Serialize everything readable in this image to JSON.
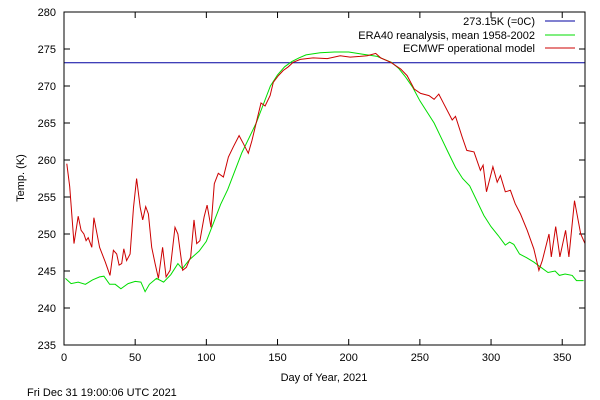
{
  "chart_data": {
    "type": "line",
    "title": "",
    "xlabel": "Day of Year, 2021",
    "ylabel": "Temp. (K)",
    "xlim": [
      0,
      366
    ],
    "ylim": [
      235,
      280
    ],
    "xticks": [
      0,
      50,
      100,
      150,
      200,
      250,
      300,
      350
    ],
    "yticks": [
      235,
      240,
      245,
      250,
      255,
      260,
      265,
      270,
      275,
      280
    ],
    "grid": false,
    "legend_position": "top-right",
    "footer": "Fri Dec 31 19:00:06 UTC 2021",
    "series": [
      {
        "name": "273.15K (=0C)",
        "color": "#0000a0",
        "points": [
          [
            0,
            273.15
          ],
          [
            366,
            273.15
          ]
        ]
      },
      {
        "name": "ERA40 reanalysis, mean 1958-2002",
        "color": "#00dd00",
        "points": [
          [
            1,
            244
          ],
          [
            5,
            243.3
          ],
          [
            10,
            243.5
          ],
          [
            15,
            243.2
          ],
          [
            20,
            243.8
          ],
          [
            25,
            244.2
          ],
          [
            28,
            244.3
          ],
          [
            32,
            243.2
          ],
          [
            36,
            243.2
          ],
          [
            40,
            242.6
          ],
          [
            45,
            243.3
          ],
          [
            50,
            243.6
          ],
          [
            54,
            243.5
          ],
          [
            57,
            242.2
          ],
          [
            60,
            243.2
          ],
          [
            65,
            244
          ],
          [
            70,
            243.5
          ],
          [
            75,
            244.5
          ],
          [
            80,
            246
          ],
          [
            83,
            245.3
          ],
          [
            88,
            246.5
          ],
          [
            95,
            247.7
          ],
          [
            100,
            249
          ],
          [
            105,
            251.5
          ],
          [
            110,
            254
          ],
          [
            115,
            256
          ],
          [
            120,
            258.5
          ],
          [
            125,
            261
          ],
          [
            130,
            263
          ],
          [
            135,
            265
          ],
          [
            140,
            267.5
          ],
          [
            145,
            270
          ],
          [
            150,
            271.5
          ],
          [
            155,
            272.6
          ],
          [
            160,
            273.3
          ],
          [
            165,
            273.8
          ],
          [
            170,
            274.2
          ],
          [
            180,
            274.5
          ],
          [
            190,
            274.6
          ],
          [
            200,
            274.6
          ],
          [
            210,
            274.3
          ],
          [
            220,
            274
          ],
          [
            225,
            273.6
          ],
          [
            230,
            273.2
          ],
          [
            235,
            272.4
          ],
          [
            240,
            271.2
          ],
          [
            245,
            269.8
          ],
          [
            250,
            268
          ],
          [
            255,
            266.5
          ],
          [
            260,
            265
          ],
          [
            265,
            263
          ],
          [
            270,
            261
          ],
          [
            275,
            259
          ],
          [
            280,
            257.5
          ],
          [
            285,
            256.5
          ],
          [
            290,
            254.5
          ],
          [
            295,
            252.5
          ],
          [
            300,
            251
          ],
          [
            305,
            249.8
          ],
          [
            310,
            248.5
          ],
          [
            313,
            248.9
          ],
          [
            316,
            248.6
          ],
          [
            320,
            247.3
          ],
          [
            325,
            246.8
          ],
          [
            330,
            246.2
          ],
          [
            335,
            245.5
          ],
          [
            340,
            244.8
          ],
          [
            345,
            245
          ],
          [
            348,
            244.4
          ],
          [
            352,
            244.6
          ],
          [
            357,
            244.4
          ],
          [
            360,
            243.7
          ],
          [
            365,
            243.7
          ]
        ]
      },
      {
        "name": "ECMWF operational model",
        "color": "#cc0000",
        "points": [
          [
            2,
            259.5
          ],
          [
            4,
            256.4
          ],
          [
            7,
            248.7
          ],
          [
            10,
            252.4
          ],
          [
            12,
            250.5
          ],
          [
            14,
            250
          ],
          [
            15.5,
            249.1
          ],
          [
            17,
            249.5
          ],
          [
            19.5,
            248.2
          ],
          [
            21,
            252.2
          ],
          [
            25,
            248.2
          ],
          [
            29,
            246.2
          ],
          [
            32.3,
            244.4
          ],
          [
            34.7,
            247.8
          ],
          [
            37,
            247.3
          ],
          [
            38.7,
            245.8
          ],
          [
            40.5,
            246
          ],
          [
            42,
            248
          ],
          [
            44,
            246.4
          ],
          [
            46.4,
            247.3
          ],
          [
            48.8,
            253.6
          ],
          [
            51,
            257.5
          ],
          [
            53.5,
            253.6
          ],
          [
            55.3,
            251.9
          ],
          [
            57.4,
            253.7
          ],
          [
            59.3,
            252.7
          ],
          [
            61.6,
            248.2
          ],
          [
            64,
            246
          ],
          [
            66.3,
            244
          ],
          [
            69.3,
            248.2
          ],
          [
            71.7,
            244.2
          ],
          [
            74.5,
            245.1
          ],
          [
            78,
            250.9
          ],
          [
            80,
            250
          ],
          [
            83.4,
            245.1
          ],
          [
            86,
            245.5
          ],
          [
            89,
            246.9
          ],
          [
            91.3,
            251.9
          ],
          [
            93.2,
            248.7
          ],
          [
            95.5,
            249.1
          ],
          [
            98.4,
            252.3
          ],
          [
            100.5,
            253.9
          ],
          [
            103.3,
            250.9
          ],
          [
            105.6,
            256.8
          ],
          [
            108.4,
            258.2
          ],
          [
            112,
            257.7
          ],
          [
            115.5,
            260.4
          ],
          [
            119,
            261.8
          ],
          [
            123,
            263.3
          ],
          [
            126,
            262.2
          ],
          [
            129.5,
            260.9
          ],
          [
            132,
            262.6
          ],
          [
            135.5,
            265.4
          ],
          [
            138.4,
            267.7
          ],
          [
            141.3,
            267.3
          ],
          [
            144.8,
            268.7
          ],
          [
            147,
            270.5
          ],
          [
            150.6,
            271.4
          ],
          [
            154,
            272.1
          ],
          [
            157.6,
            272.6
          ],
          [
            161,
            273.2
          ],
          [
            166,
            273.6
          ],
          [
            175,
            273.8
          ],
          [
            185,
            273.7
          ],
          [
            194,
            274.1
          ],
          [
            201,
            273.9
          ],
          [
            208,
            274
          ],
          [
            213,
            274.1
          ],
          [
            219,
            274.4
          ],
          [
            222.5,
            273.8
          ],
          [
            229.5,
            273.2
          ],
          [
            236.5,
            272.3
          ],
          [
            241,
            271.4
          ],
          [
            246,
            269.6
          ],
          [
            250.5,
            269
          ],
          [
            256.4,
            268.7
          ],
          [
            260,
            268.2
          ],
          [
            263.3,
            268.9
          ],
          [
            266.8,
            267.6
          ],
          [
            272.7,
            265.4
          ],
          [
            275,
            265.9
          ],
          [
            279.7,
            263.1
          ],
          [
            283,
            261.3
          ],
          [
            288,
            261.1
          ],
          [
            292.5,
            258.6
          ],
          [
            294.4,
            259.3
          ],
          [
            296.8,
            255.7
          ],
          [
            301.3,
            259.1
          ],
          [
            304.3,
            257
          ],
          [
            306.6,
            257.9
          ],
          [
            310,
            255.7
          ],
          [
            313.6,
            255.9
          ],
          [
            317,
            254.1
          ],
          [
            320.7,
            252.7
          ],
          [
            325.4,
            250.5
          ],
          [
            330,
            248
          ],
          [
            333.6,
            245.1
          ],
          [
            336,
            246.4
          ],
          [
            340.7,
            250
          ],
          [
            342.3,
            246.9
          ],
          [
            345.4,
            251
          ],
          [
            348.4,
            246.9
          ],
          [
            352.4,
            250.5
          ],
          [
            354.7,
            246.9
          ],
          [
            358.6,
            254.5
          ],
          [
            363,
            250
          ],
          [
            366,
            248.7
          ]
        ]
      }
    ]
  }
}
